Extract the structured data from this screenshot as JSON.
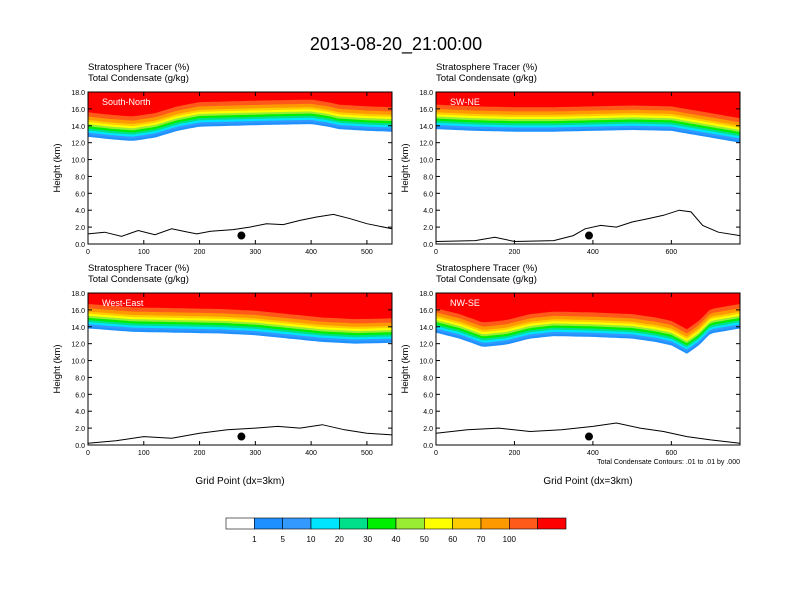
{
  "title": "2013-08-20_21:00:00",
  "colors": {
    "levels": [
      "#ffffff",
      "#1e90ff",
      "#3399ff",
      "#00e5ff",
      "#00e08a",
      "#00ee00",
      "#99ee33",
      "#ffff00",
      "#ffcc00",
      "#ff9900",
      "#ff5a1a",
      "#ff0000"
    ],
    "contour": "#000000",
    "terrain": "#000000"
  },
  "chart_data": [
    {
      "type": "contour-cross-section",
      "label": "South-North",
      "subtitle_line1": "Stratosphere Tracer   (%)",
      "subtitle_line2": "Total Condensate   (g/kg)",
      "ylabel": "Height (km)",
      "xlabel": "",
      "xlim": [
        0,
        545
      ],
      "ylim": [
        0,
        18
      ],
      "xticks": [
        "0",
        "100",
        "200",
        "300",
        "400",
        "500"
      ],
      "xtick_values": [
        0,
        100,
        200,
        300,
        400,
        500
      ],
      "yticks": [
        "0.0",
        "2.0",
        "4.0",
        "6.0",
        "8.0",
        "10.0",
        "12.0",
        "14.0",
        "16.0",
        "18.0"
      ],
      "marker_x": 275,
      "marker_y": 1.0,
      "tracer_base_km": [
        [
          0,
          12.7
        ],
        [
          40,
          12.4
        ],
        [
          80,
          12.2
        ],
        [
          120,
          12.6
        ],
        [
          160,
          13.4
        ],
        [
          200,
          13.9
        ],
        [
          260,
          14.0
        ],
        [
          320,
          14.1
        ],
        [
          400,
          14.2
        ],
        [
          430,
          13.9
        ],
        [
          450,
          13.6
        ],
        [
          500,
          13.4
        ],
        [
          545,
          13.3
        ]
      ],
      "terrain_km": [
        [
          0,
          1.2
        ],
        [
          30,
          1.4
        ],
        [
          60,
          0.9
        ],
        [
          90,
          1.6
        ],
        [
          120,
          1.1
        ],
        [
          150,
          1.8
        ],
        [
          180,
          1.4
        ],
        [
          195,
          1.2
        ],
        [
          220,
          1.5
        ],
        [
          260,
          1.7
        ],
        [
          290,
          2.0
        ],
        [
          320,
          2.4
        ],
        [
          350,
          2.3
        ],
        [
          380,
          2.8
        ],
        [
          410,
          3.2
        ],
        [
          440,
          3.5
        ],
        [
          470,
          3.0
        ],
        [
          500,
          2.4
        ],
        [
          545,
          1.8
        ]
      ]
    },
    {
      "type": "contour-cross-section",
      "label": "SW-NE",
      "subtitle_line1": "Stratosphere Tracer   (%)",
      "subtitle_line2": "Total Condensate   (g/kg)",
      "ylabel": "Height (km)",
      "xlabel": "",
      "xlim": [
        0,
        775
      ],
      "ylim": [
        0,
        18
      ],
      "xticks": [
        "0",
        "200",
        "400",
        "600"
      ],
      "xtick_values": [
        0,
        200,
        400,
        600
      ],
      "yticks": [
        "0.0",
        "2.0",
        "4.0",
        "6.0",
        "8.0",
        "10.0",
        "12.0",
        "14.0",
        "16.0",
        "18.0"
      ],
      "marker_x": 390,
      "marker_y": 1.0,
      "tracer_base_km": [
        [
          0,
          13.6
        ],
        [
          100,
          13.4
        ],
        [
          200,
          13.3
        ],
        [
          300,
          13.3
        ],
        [
          400,
          13.4
        ],
        [
          500,
          13.5
        ],
        [
          600,
          13.4
        ],
        [
          700,
          12.6
        ],
        [
          775,
          12.0
        ]
      ],
      "terrain_km": [
        [
          0,
          0.3
        ],
        [
          100,
          0.4
        ],
        [
          150,
          0.8
        ],
        [
          200,
          0.3
        ],
        [
          300,
          0.4
        ],
        [
          350,
          1.0
        ],
        [
          380,
          1.8
        ],
        [
          420,
          2.2
        ],
        [
          460,
          2.0
        ],
        [
          500,
          2.6
        ],
        [
          540,
          3.0
        ],
        [
          580,
          3.4
        ],
        [
          620,
          4.0
        ],
        [
          650,
          3.8
        ],
        [
          680,
          2.2
        ],
        [
          720,
          1.4
        ],
        [
          775,
          1.0
        ]
      ]
    },
    {
      "type": "contour-cross-section",
      "label": "West-East",
      "subtitle_line1": "Stratosphere Tracer   (%)",
      "subtitle_line2": "Total Condensate   (g/kg)",
      "ylabel": "Height (km)",
      "xlabel": "Grid Point (dx=3km)",
      "xlim": [
        0,
        545
      ],
      "ylim": [
        0,
        18
      ],
      "xticks": [
        "0",
        "100",
        "200",
        "300",
        "400",
        "500"
      ],
      "xtick_values": [
        0,
        100,
        200,
        300,
        400,
        500
      ],
      "yticks": [
        "0.0",
        "2.0",
        "4.0",
        "6.0",
        "8.0",
        "10.0",
        "12.0",
        "14.0",
        "16.0",
        "18.0"
      ],
      "marker_x": 275,
      "marker_y": 1.0,
      "tracer_base_km": [
        [
          0,
          13.8
        ],
        [
          80,
          13.4
        ],
        [
          160,
          13.3
        ],
        [
          240,
          13.2
        ],
        [
          300,
          13.0
        ],
        [
          360,
          12.6
        ],
        [
          420,
          12.2
        ],
        [
          480,
          12.0
        ],
        [
          545,
          12.1
        ]
      ],
      "terrain_km": [
        [
          0,
          0.2
        ],
        [
          50,
          0.5
        ],
        [
          100,
          1.0
        ],
        [
          150,
          0.8
        ],
        [
          200,
          1.4
        ],
        [
          250,
          1.8
        ],
        [
          300,
          2.0
        ],
        [
          340,
          2.2
        ],
        [
          380,
          2.0
        ],
        [
          420,
          2.4
        ],
        [
          460,
          1.8
        ],
        [
          500,
          1.4
        ],
        [
          545,
          1.2
        ]
      ]
    },
    {
      "type": "contour-cross-section",
      "label": "NW-SE",
      "subtitle_line1": "Stratosphere Tracer   (%)",
      "subtitle_line2": "Total Condensate   (g/kg)",
      "ylabel": "Height (km)",
      "xlabel": "Grid Point (dx=3km)",
      "note": "Total Condensate Contours: .01 to .01 by .000",
      "xlim": [
        0,
        775
      ],
      "ylim": [
        0,
        18
      ],
      "xticks": [
        "0",
        "200",
        "400",
        "600"
      ],
      "xtick_values": [
        0,
        200,
        400,
        600
      ],
      "yticks": [
        "0.0",
        "2.0",
        "4.0",
        "6.0",
        "8.0",
        "10.0",
        "12.0",
        "14.0",
        "16.0",
        "18.0"
      ],
      "marker_x": 390,
      "marker_y": 1.0,
      "tracer_base_km": [
        [
          0,
          13.3
        ],
        [
          60,
          12.6
        ],
        [
          120,
          11.6
        ],
        [
          180,
          11.9
        ],
        [
          240,
          12.6
        ],
        [
          300,
          12.9
        ],
        [
          400,
          12.8
        ],
        [
          500,
          12.6
        ],
        [
          560,
          12.2
        ],
        [
          600,
          11.8
        ],
        [
          640,
          10.8
        ],
        [
          670,
          11.8
        ],
        [
          700,
          13.2
        ],
        [
          775,
          13.8
        ]
      ],
      "terrain_km": [
        [
          0,
          1.4
        ],
        [
          80,
          1.8
        ],
        [
          160,
          2.0
        ],
        [
          240,
          1.6
        ],
        [
          320,
          1.8
        ],
        [
          400,
          2.2
        ],
        [
          460,
          2.6
        ],
        [
          520,
          2.0
        ],
        [
          580,
          1.6
        ],
        [
          640,
          1.0
        ],
        [
          700,
          0.6
        ],
        [
          775,
          0.2
        ]
      ]
    }
  ],
  "colorbar": {
    "ticks": [
      "1",
      "5",
      "10",
      "20",
      "30",
      "40",
      "50",
      "60",
      "70",
      "100"
    ]
  }
}
